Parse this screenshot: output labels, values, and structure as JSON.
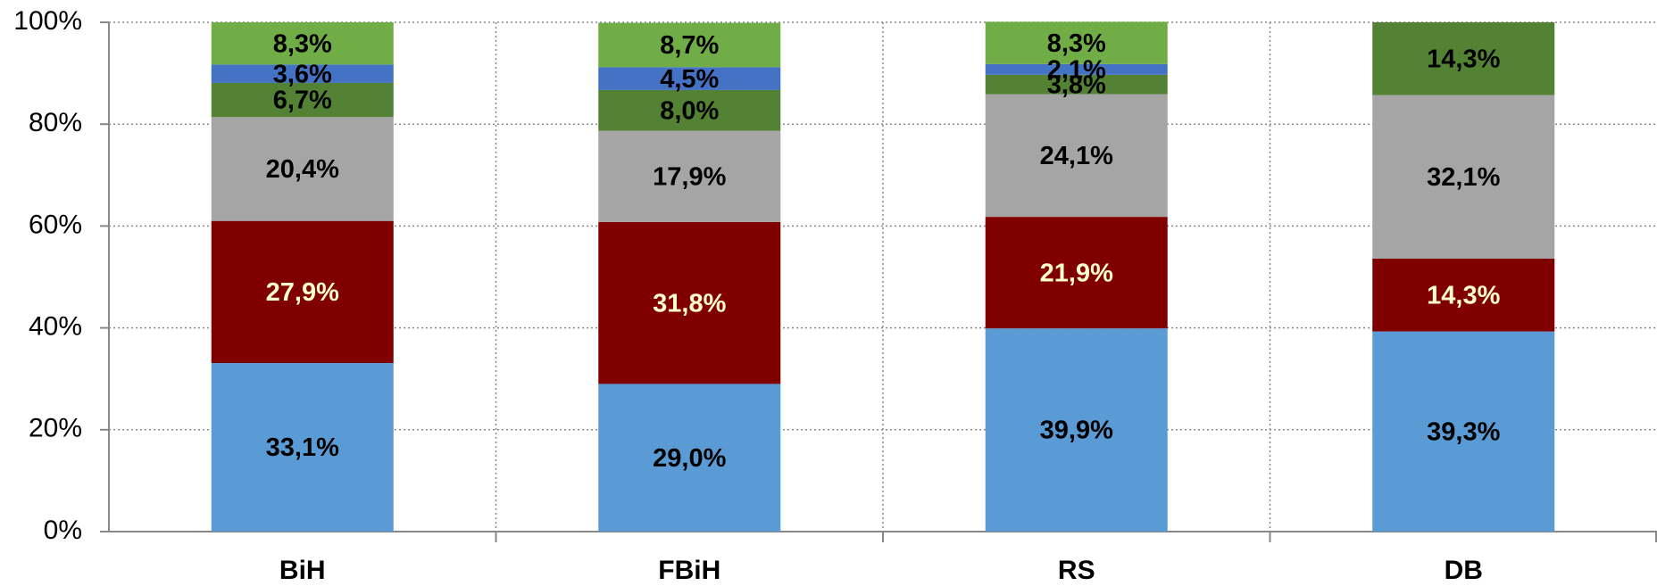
{
  "chart_data": {
    "type": "stacked_bar",
    "categories": [
      "BiH",
      "FBiH",
      "RS",
      "DB"
    ],
    "series": [
      {
        "color": "#5b9bd5",
        "label_color": "#000000",
        "values": [
          33.1,
          29.0,
          39.9,
          39.3
        ],
        "value_labels": [
          "33,1%",
          "29,0%",
          "39,9%",
          "39,3%"
        ]
      },
      {
        "color": "#800000",
        "label_color": "#ffffcc",
        "values": [
          27.9,
          31.8,
          21.9,
          14.3
        ],
        "value_labels": [
          "27,9%",
          "31,8%",
          "21,9%",
          "14,3%"
        ]
      },
      {
        "color": "#a5a5a5",
        "label_color": "#000000",
        "values": [
          20.4,
          17.9,
          24.1,
          32.1
        ],
        "value_labels": [
          "20,4%",
          "17,9%",
          "24,1%",
          "32,1%"
        ]
      },
      {
        "color": "#548235",
        "label_color": "#000000",
        "values": [
          6.7,
          8.0,
          3.8,
          14.3
        ],
        "value_labels": [
          "6,7%",
          "8,0%",
          "3,8%",
          "14,3%"
        ]
      },
      {
        "color": "#4472c4",
        "label_color": "#000000",
        "values": [
          3.6,
          4.5,
          2.1,
          null
        ],
        "value_labels": [
          "3,6%",
          "4,5%",
          "2,1%",
          null
        ]
      },
      {
        "color": "#70ad47",
        "label_color": "#000000",
        "values": [
          8.3,
          8.7,
          8.3,
          null
        ],
        "value_labels": [
          "8,3%",
          "8,7%",
          "8,3%",
          null
        ]
      }
    ],
    "ylim": [
      0,
      100
    ],
    "yticks": [
      {
        "value": 0,
        "label": "0%"
      },
      {
        "value": 20,
        "label": "20%"
      },
      {
        "value": 40,
        "label": "40%"
      },
      {
        "value": 60,
        "label": "60%"
      },
      {
        "value": 80,
        "label": "80%"
      },
      {
        "value": 100,
        "label": "100%"
      }
    ],
    "grid": true
  }
}
